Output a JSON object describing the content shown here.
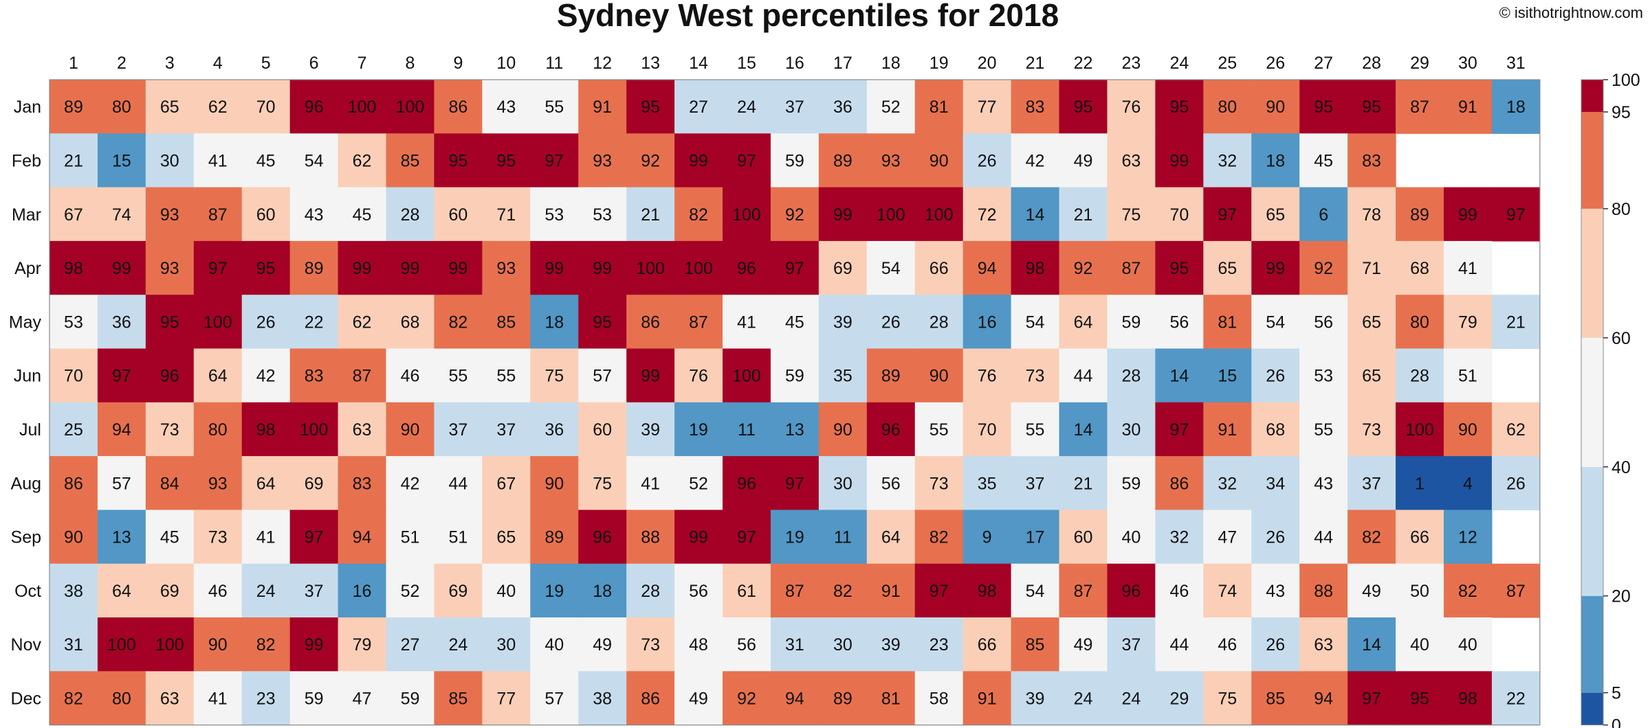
{
  "header": {
    "title": "Sydney West percentiles for 2018",
    "credit": "© isithotrightnow.com"
  },
  "chart_data": {
    "type": "heatmap",
    "title": "Sydney West percentiles for 2018",
    "x_categories": [
      "1",
      "2",
      "3",
      "4",
      "5",
      "6",
      "7",
      "8",
      "9",
      "10",
      "11",
      "12",
      "13",
      "14",
      "15",
      "16",
      "17",
      "18",
      "19",
      "20",
      "21",
      "22",
      "23",
      "24",
      "25",
      "26",
      "27",
      "28",
      "29",
      "30",
      "31"
    ],
    "y_categories": [
      "Jan",
      "Feb",
      "Mar",
      "Apr",
      "May",
      "Jun",
      "Jul",
      "Aug",
      "Sep",
      "Oct",
      "Nov",
      "Dec"
    ],
    "values": [
      [
        89,
        80,
        65,
        62,
        70,
        96,
        100,
        100,
        86,
        43,
        55,
        91,
        95,
        27,
        24,
        37,
        36,
        52,
        81,
        77,
        83,
        95,
        76,
        95,
        80,
        90,
        95,
        95,
        87,
        91,
        18
      ],
      [
        21,
        15,
        30,
        41,
        45,
        54,
        62,
        85,
        95,
        95,
        97,
        93,
        92,
        99,
        97,
        59,
        89,
        93,
        90,
        26,
        42,
        49,
        63,
        99,
        32,
        18,
        45,
        83,
        null,
        null,
        null
      ],
      [
        67,
        74,
        93,
        87,
        60,
        43,
        45,
        28,
        60,
        71,
        53,
        53,
        21,
        82,
        100,
        92,
        99,
        100,
        100,
        72,
        14,
        21,
        75,
        70,
        97,
        65,
        6,
        78,
        89,
        99,
        97
      ],
      [
        98,
        99,
        93,
        97,
        95,
        89,
        99,
        99,
        99,
        93,
        99,
        99,
        100,
        100,
        96,
        97,
        69,
        54,
        66,
        94,
        98,
        92,
        87,
        95,
        65,
        99,
        92,
        71,
        68,
        41,
        null
      ],
      [
        53,
        36,
        95,
        100,
        26,
        22,
        62,
        68,
        82,
        85,
        18,
        95,
        86,
        87,
        41,
        45,
        39,
        26,
        28,
        16,
        54,
        64,
        59,
        56,
        81,
        54,
        56,
        65,
        80,
        79,
        21
      ],
      [
        70,
        97,
        96,
        64,
        42,
        83,
        87,
        46,
        55,
        55,
        75,
        57,
        99,
        76,
        100,
        59,
        35,
        89,
        90,
        76,
        73,
        44,
        28,
        14,
        15,
        26,
        53,
        65,
        28,
        51,
        null
      ],
      [
        25,
        94,
        73,
        80,
        98,
        100,
        63,
        90,
        37,
        37,
        36,
        60,
        39,
        19,
        11,
        13,
        90,
        96,
        55,
        70,
        55,
        14,
        30,
        97,
        91,
        68,
        55,
        73,
        100,
        90,
        62
      ],
      [
        86,
        57,
        84,
        93,
        64,
        69,
        83,
        42,
        44,
        67,
        90,
        75,
        41,
        52,
        96,
        97,
        30,
        56,
        73,
        35,
        37,
        21,
        59,
        86,
        32,
        34,
        43,
        37,
        1,
        4,
        26
      ],
      [
        90,
        13,
        45,
        73,
        41,
        97,
        94,
        51,
        51,
        65,
        89,
        96,
        88,
        99,
        97,
        19,
        11,
        64,
        82,
        9,
        17,
        60,
        40,
        32,
        47,
        26,
        44,
        82,
        66,
        12,
        null
      ],
      [
        38,
        64,
        69,
        46,
        24,
        37,
        16,
        52,
        69,
        40,
        19,
        18,
        28,
        56,
        61,
        87,
        82,
        91,
        97,
        98,
        54,
        87,
        96,
        46,
        74,
        43,
        88,
        49,
        50,
        82,
        87
      ],
      [
        31,
        100,
        100,
        90,
        82,
        99,
        79,
        27,
        24,
        30,
        40,
        49,
        73,
        48,
        56,
        31,
        30,
        39,
        23,
        66,
        85,
        49,
        37,
        44,
        46,
        26,
        63,
        14,
        40,
        40,
        null
      ],
      [
        82,
        80,
        63,
        41,
        23,
        59,
        47,
        59,
        85,
        77,
        57,
        38,
        86,
        49,
        92,
        94,
        89,
        81,
        58,
        91,
        39,
        24,
        24,
        29,
        75,
        85,
        94,
        97,
        95,
        98,
        22
      ]
    ],
    "colorbar": {
      "ticks": [
        0,
        5,
        20,
        40,
        60,
        80,
        95,
        100
      ],
      "bins": [
        {
          "from": 0,
          "to": 5,
          "color": "#1d55a2"
        },
        {
          "from": 5,
          "to": 20,
          "color": "#5297c6"
        },
        {
          "from": 20,
          "to": 40,
          "color": "#c6dcec"
        },
        {
          "from": 40,
          "to": 60,
          "color": "#f4f4f4"
        },
        {
          "from": 60,
          "to": 80,
          "color": "#fbcfb7"
        },
        {
          "from": 80,
          "to": 95,
          "color": "#e7714f"
        },
        {
          "from": 95,
          "to": 100,
          "color": "#a50026"
        }
      ]
    }
  }
}
